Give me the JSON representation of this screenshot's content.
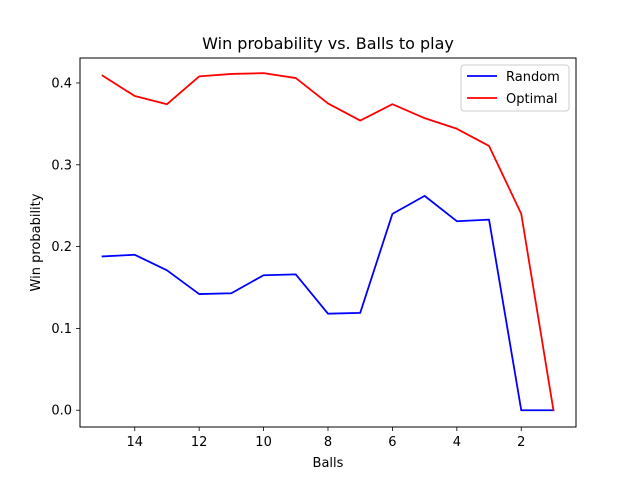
{
  "chart_data": {
    "type": "line",
    "title": "Win probability vs. Balls to play",
    "xlabel": "Balls",
    "ylabel": "Win probability",
    "x_inverted": true,
    "xlim": [
      15.7,
      0.3
    ],
    "ylim": [
      -0.0205,
      0.4305
    ],
    "xticks": [
      14,
      12,
      10,
      8,
      6,
      4,
      2
    ],
    "yticks": [
      0.0,
      0.1,
      0.2,
      0.3,
      0.4
    ],
    "ytick_labels": [
      "0.0",
      "0.1",
      "0.2",
      "0.3",
      "0.4"
    ],
    "grid": false,
    "legend_position": "top-right",
    "x": [
      15,
      14,
      13,
      12,
      11,
      10,
      9,
      8,
      7,
      6,
      5,
      4,
      3,
      2,
      1
    ],
    "series": [
      {
        "name": "Random",
        "color": "#0000ff",
        "values": [
          0.188,
          0.19,
          0.171,
          0.142,
          0.143,
          0.165,
          0.166,
          0.118,
          0.119,
          0.24,
          0.262,
          0.231,
          0.233,
          0.0,
          0.0
        ]
      },
      {
        "name": "Optimal",
        "color": "#ff0000",
        "values": [
          0.409,
          0.384,
          0.374,
          0.408,
          0.411,
          0.412,
          0.406,
          0.375,
          0.354,
          0.374,
          0.357,
          0.344,
          0.323,
          0.24,
          0.0
        ]
      }
    ]
  }
}
